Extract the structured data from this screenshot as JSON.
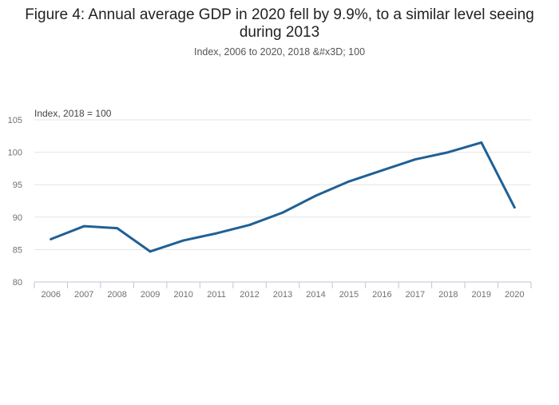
{
  "chart_data": {
    "type": "line",
    "title": "Figure 4: Annual average GDP in 2020 fell by 9.9%, to a similar level seeing",
    "title_line2": "during 2013",
    "subtitle": "Index, 2006 to 2020, 2018 &#x3D; 100",
    "ylabel": "Index, 2018 = 100",
    "xlabel": "",
    "categories": [
      "2006",
      "2007",
      "2008",
      "2009",
      "2010",
      "2011",
      "2012",
      "2013",
      "2014",
      "2015",
      "2016",
      "2017",
      "2018",
      "2019",
      "2020"
    ],
    "series": [
      {
        "name": "",
        "values": [
          86.6,
          88.6,
          88.3,
          84.7,
          86.4,
          87.5,
          88.8,
          90.7,
          93.3,
          95.5,
          97.2,
          98.9,
          100.0,
          101.5,
          91.5
        ],
        "color": "#206095"
      }
    ],
    "ylim": [
      80,
      105
    ],
    "yticks": [
      80,
      85,
      90,
      95,
      100,
      105
    ],
    "grid": true,
    "colors": {
      "line": "#206095",
      "grid": "#e5e5e5",
      "axis": "#bec6d6",
      "tick_text": "#707070",
      "title": "#222222",
      "subtitle": "#555555"
    }
  }
}
